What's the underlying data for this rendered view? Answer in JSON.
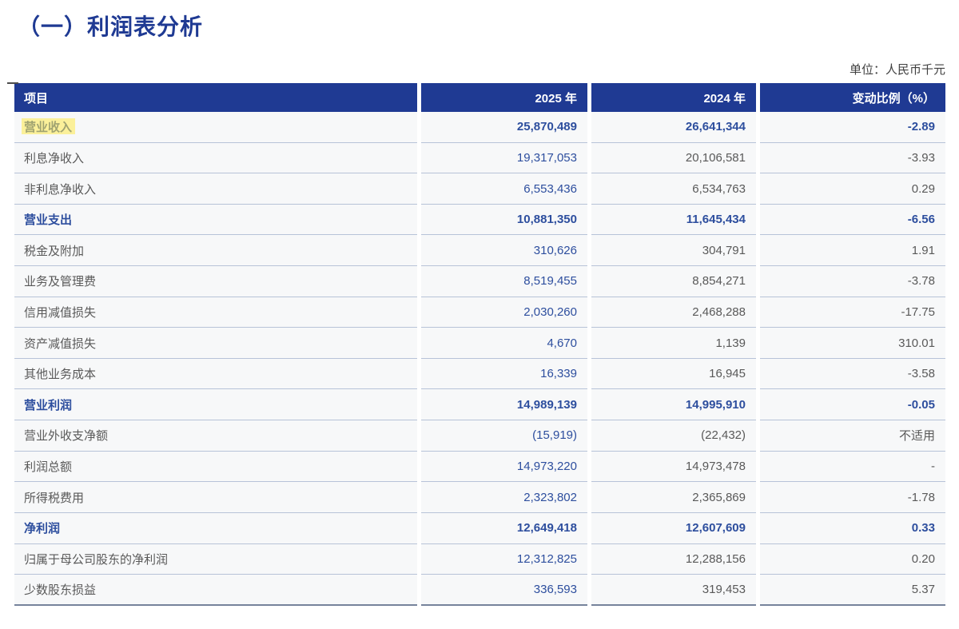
{
  "page": {
    "title": "（一）利润表分析",
    "unit_note": "单位：人民币千元"
  },
  "colors": {
    "header_bg": "#1F3A93",
    "title_blue": "#1F3A93",
    "emphasis_blue": "#2D4E9E",
    "body_gray": "#595959",
    "row_bg": "#F7F8F9",
    "row_divider": "#B7C3D8",
    "highlight_yellow": "#FFE94D"
  },
  "table": {
    "columns": [
      "项目",
      "2025 年",
      "2024 年",
      "变动比例（%）"
    ],
    "rows": [
      {
        "item": "营业收入",
        "y2025": "25,870,489",
        "y2024": "26,641,344",
        "change": "-2.89",
        "emphasis": true,
        "highlight": true
      },
      {
        "item": "利息净收入",
        "y2025": "19,317,053",
        "y2024": "20,106,581",
        "change": "-3.93",
        "emphasis": false,
        "highlight": false
      },
      {
        "item": "非利息净收入",
        "y2025": "6,553,436",
        "y2024": "6,534,763",
        "change": "0.29",
        "emphasis": false,
        "highlight": false
      },
      {
        "item": "营业支出",
        "y2025": "10,881,350",
        "y2024": "11,645,434",
        "change": "-6.56",
        "emphasis": true,
        "highlight": false
      },
      {
        "item": "税金及附加",
        "y2025": "310,626",
        "y2024": "304,791",
        "change": "1.91",
        "emphasis": false,
        "highlight": false
      },
      {
        "item": "业务及管理费",
        "y2025": "8,519,455",
        "y2024": "8,854,271",
        "change": "-3.78",
        "emphasis": false,
        "highlight": false
      },
      {
        "item": "信用减值损失",
        "y2025": "2,030,260",
        "y2024": "2,468,288",
        "change": "-17.75",
        "emphasis": false,
        "highlight": false
      },
      {
        "item": "资产减值损失",
        "y2025": "4,670",
        "y2024": "1,139",
        "change": "310.01",
        "emphasis": false,
        "highlight": false
      },
      {
        "item": "其他业务成本",
        "y2025": "16,339",
        "y2024": "16,945",
        "change": "-3.58",
        "emphasis": false,
        "highlight": false
      },
      {
        "item": "营业利润",
        "y2025": "14,989,139",
        "y2024": "14,995,910",
        "change": "-0.05",
        "emphasis": true,
        "highlight": false
      },
      {
        "item": "营业外收支净额",
        "y2025": "(15,919)",
        "y2024": "(22,432)",
        "change": "不适用",
        "emphasis": false,
        "highlight": false
      },
      {
        "item": "利润总额",
        "y2025": "14,973,220",
        "y2024": "14,973,478",
        "change": "-",
        "emphasis": false,
        "highlight": false
      },
      {
        "item": "所得税费用",
        "y2025": "2,323,802",
        "y2024": "2,365,869",
        "change": "-1.78",
        "emphasis": false,
        "highlight": false
      },
      {
        "item": "净利润",
        "y2025": "12,649,418",
        "y2024": "12,607,609",
        "change": "0.33",
        "emphasis": true,
        "highlight": false
      },
      {
        "item": "归属于母公司股东的净利润",
        "y2025": "12,312,825",
        "y2024": "12,288,156",
        "change": "0.20",
        "emphasis": false,
        "highlight": false
      },
      {
        "item": "少数股东损益",
        "y2025": "336,593",
        "y2024": "319,453",
        "change": "5.37",
        "emphasis": false,
        "highlight": false
      }
    ]
  }
}
